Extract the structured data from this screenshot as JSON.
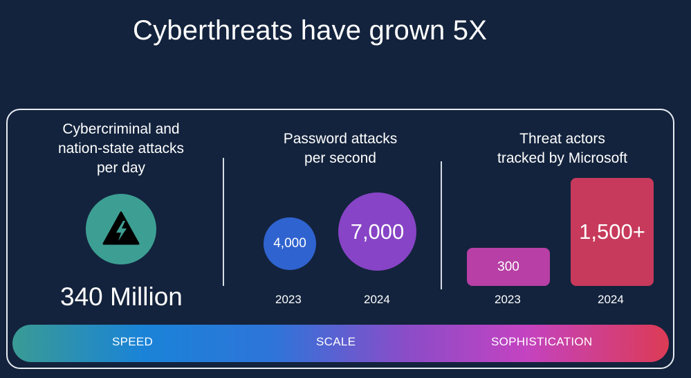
{
  "title": "Cyberthreats have grown 5X",
  "sections": {
    "attacks": {
      "heading_lines": [
        "Cybercriminal and",
        "nation-state attacks",
        "per day"
      ],
      "icon": "alert-lightning-icon",
      "value": "340 Million"
    },
    "passwords": {
      "heading_lines": [
        "Password attacks",
        "per second"
      ],
      "items": [
        {
          "year": "2023",
          "value": "4,000"
        },
        {
          "year": "2024",
          "value": "7,000"
        }
      ]
    },
    "actors": {
      "heading_lines": [
        "Threat actors",
        "tracked by Microsoft"
      ],
      "items": [
        {
          "year": "2023",
          "value": "300"
        },
        {
          "year": "2024",
          "value": "1,500+"
        }
      ]
    }
  },
  "spectrum": {
    "labels": [
      "SPEED",
      "SCALE",
      "SOPHISTICATION"
    ]
  },
  "colors": {
    "background": "#13233d",
    "teal": "#3d9f93",
    "blue": "#2f63cf",
    "purple": "#8744c6",
    "magenta": "#b73fa5",
    "red": "#c73a5b"
  }
}
